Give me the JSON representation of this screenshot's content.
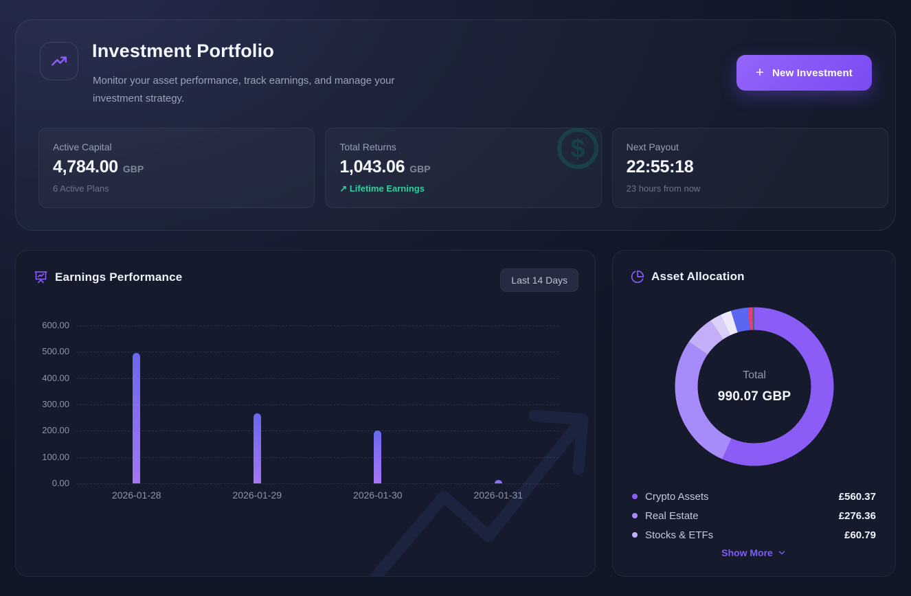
{
  "colors": {
    "accent": "#8b5cf6",
    "positive": "#2ed09e",
    "bar_gradient": [
      "#6a68f0",
      "#a476f7"
    ],
    "watermark_teal": "#174049"
  },
  "header": {
    "title": "Investment Portfolio",
    "subtitle": "Monitor your asset performance, track earnings, and manage your investment strategy.",
    "new_investment_label": "New Investment",
    "plus": "+"
  },
  "stats": [
    {
      "label": "Active Capital",
      "value": "4,784.00",
      "unit": "GBP",
      "sub": "6 Active Plans"
    },
    {
      "label": "Total Returns",
      "value": "1,043.06",
      "unit": "GBP",
      "sub_icon": "↗",
      "sub": "Lifetime Earnings"
    },
    {
      "label": "Next Payout",
      "value": "22:55:18",
      "unit": "",
      "sub": "23 hours from now"
    }
  ],
  "earnings": {
    "title": "Earnings Performance",
    "range_label": "Last 14 Days"
  },
  "allocation": {
    "title": "Asset Allocation",
    "center_label": "Total",
    "center_value": "990.07 GBP",
    "legend": [
      {
        "label": "Crypto Assets",
        "amount": "£560.37"
      },
      {
        "label": "Real Estate",
        "amount": "£276.36"
      },
      {
        "label": "Stocks & ETFs",
        "amount": "£60.79"
      }
    ],
    "show_more": "Show More"
  },
  "chart_data": [
    {
      "type": "bar",
      "title": "Earnings Performance",
      "categories": [
        "2026-01-28",
        "2026-01-29",
        "2026-01-30",
        "2026-01-31"
      ],
      "values": [
        495,
        265,
        200,
        12
      ],
      "xlabel": "",
      "ylabel": "",
      "ylim": [
        0,
        600
      ],
      "ytick_step": 100,
      "ytick_format": "0.00 decimals",
      "grid": "horizontal dashed",
      "legend_position": "none"
    },
    {
      "type": "pie",
      "title": "Asset Allocation",
      "center_label": "Total",
      "center_value_gbp": 990.07,
      "slices": [
        {
          "label": "Crypto Assets",
          "value": 560.37,
          "color": "#8b5cf6"
        },
        {
          "label": "Real Estate",
          "value": 276.36,
          "color": "#a78bfa"
        },
        {
          "label": "Stocks & ETFs",
          "value": 60.79,
          "color": "#c5aef8"
        },
        {
          "label": "",
          "value": 22.5,
          "color": "#dccffa"
        },
        {
          "label": "",
          "value": 22.5,
          "color": "#eeeafd"
        },
        {
          "label": "",
          "value": 34.55,
          "color": "#5b67f1"
        },
        {
          "label": "",
          "value": 9.0,
          "color": "#e23f80"
        },
        {
          "label": "",
          "value": 4.0,
          "color": "#4a6b5e"
        }
      ]
    }
  ]
}
